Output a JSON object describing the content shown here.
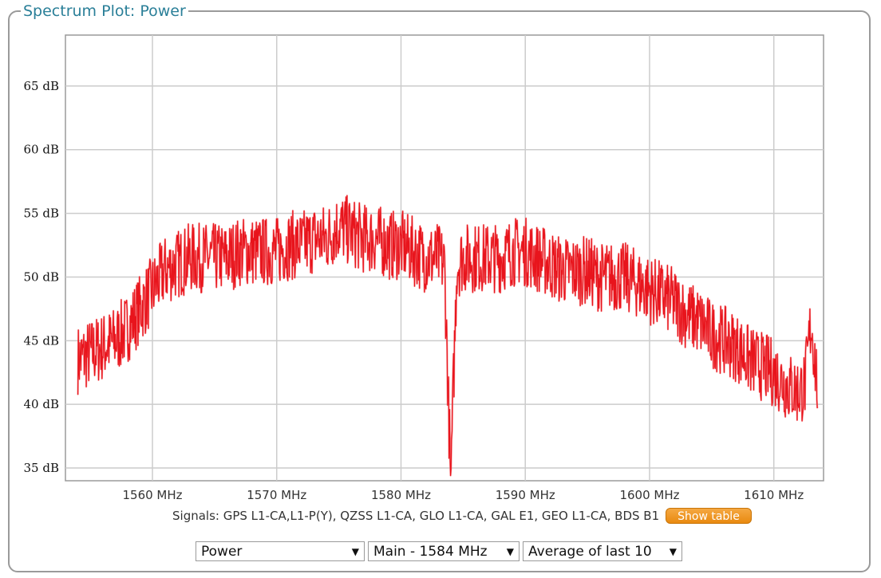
{
  "panel": {
    "title": "Spectrum Plot: Power"
  },
  "chart_data": {
    "type": "line",
    "title": "",
    "xlabel": "",
    "ylabel": "",
    "x_unit": "MHz",
    "y_unit": "dB",
    "xlim": [
      1553,
      1614
    ],
    "ylim": [
      34,
      69
    ],
    "x_ticks": [
      1560,
      1570,
      1580,
      1590,
      1600,
      1610
    ],
    "x_tick_labels": [
      "1560 MHz",
      "1570 MHz",
      "1580 MHz",
      "1590 MHz",
      "1600 MHz",
      "1610 MHz"
    ],
    "y_ticks": [
      35,
      40,
      45,
      50,
      55,
      60,
      65
    ],
    "y_tick_labels": [
      "35 dB",
      "40 dB",
      "45 dB",
      "50 dB",
      "55 dB",
      "60 dB",
      "65 dB"
    ],
    "grid": true,
    "series": [
      {
        "color": "#e8141c",
        "x": [
          1554,
          1555,
          1556,
          1557,
          1558,
          1559,
          1560,
          1561,
          1562,
          1563,
          1564,
          1565,
          1566,
          1567,
          1568,
          1569,
          1570,
          1571,
          1572,
          1573,
          1574,
          1575,
          1576,
          1577,
          1578,
          1579,
          1580,
          1581,
          1582,
          1583,
          1583.5,
          1584,
          1584.5,
          1585,
          1586,
          1587,
          1588,
          1589,
          1590,
          1591,
          1592,
          1593,
          1594,
          1595,
          1596,
          1597,
          1598,
          1599,
          1600,
          1601,
          1602,
          1603,
          1604,
          1605,
          1606,
          1607,
          1608,
          1609,
          1610,
          1611,
          1612,
          1612.5,
          1613,
          1613.5
        ],
        "y": [
          43.5,
          44,
          44.5,
          45,
          46,
          47.5,
          49,
          50.5,
          51,
          51.5,
          51.5,
          51.5,
          51.5,
          52,
          52,
          52,
          52,
          52.5,
          52.5,
          53,
          53,
          54,
          53.5,
          53,
          53,
          52.5,
          52.5,
          52,
          51.5,
          51.5,
          51,
          34,
          51,
          51.5,
          51.5,
          51.5,
          51.5,
          52,
          52,
          51.5,
          51,
          50.5,
          50.5,
          50.5,
          50,
          50,
          50,
          49.5,
          49,
          48.5,
          48,
          47,
          46.5,
          45.5,
          45,
          44.5,
          43.5,
          43,
          42.5,
          41.5,
          41,
          41.5,
          46.5,
          41.5
        ]
      }
    ]
  },
  "signals": {
    "text": "Signals: GPS L1-CA,L1-P(Y), QZSS L1-CA, GLO L1-CA, GAL E1, GEO L1-CA, BDS B1",
    "show_table_label": "Show table"
  },
  "controls": {
    "measure": "Power",
    "channel": "Main - 1584 MHz",
    "averaging": "Average of last 10"
  }
}
